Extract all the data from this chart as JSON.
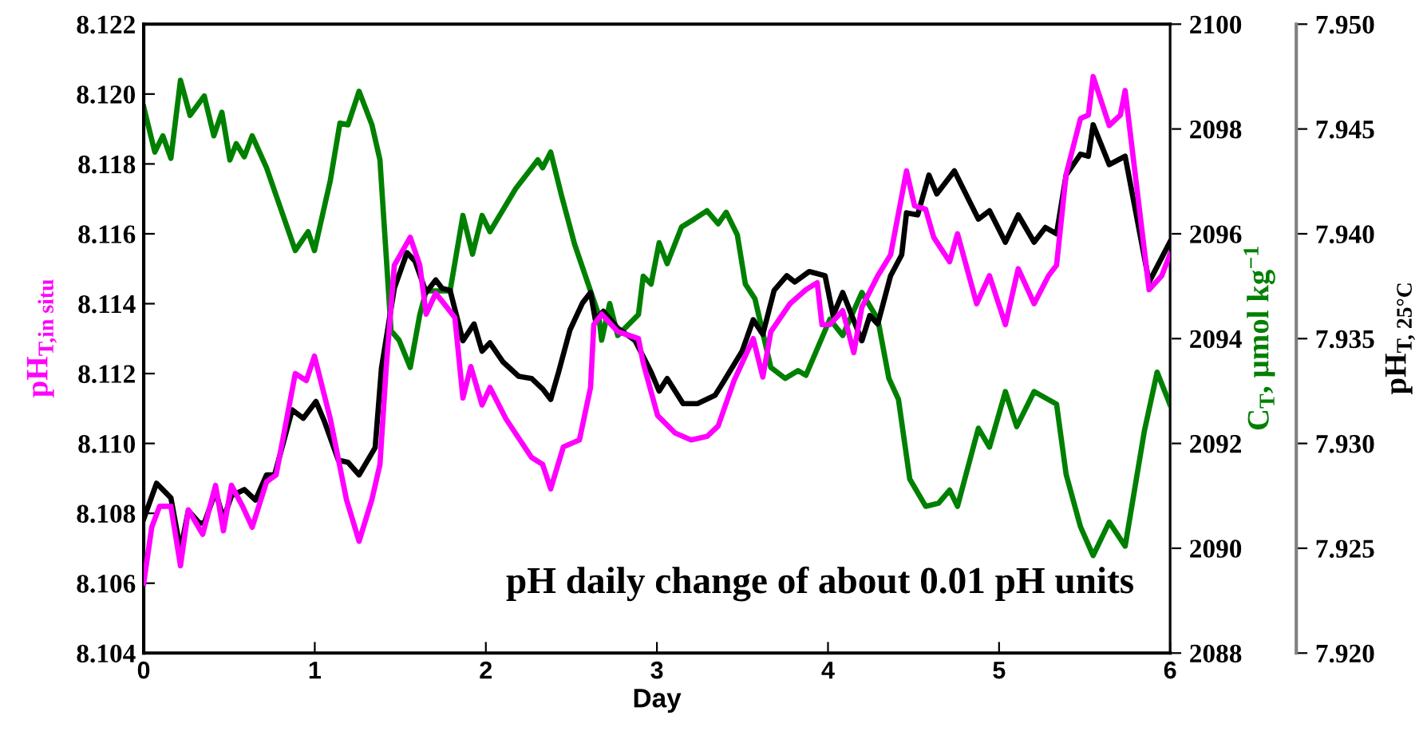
{
  "chart_data": {
    "type": "line",
    "xlabel": "Day",
    "ylabel": "pH$_{T,in situ}$",
    "y2label": "C$_{T}$, µmol kg$^{−1}$",
    "y3label": "pH$_{T, 25°C}$",
    "xlim": [
      0,
      6
    ],
    "xticks": [
      0,
      1,
      2,
      3,
      4,
      5,
      6
    ],
    "ylim": [
      8.104,
      8.122
    ],
    "yticks": [
      {
        "value": 8.104,
        "label": "8.104"
      },
      {
        "value": 8.106,
        "label": "8.106"
      },
      {
        "value": 8.108,
        "label": "8.108"
      },
      {
        "value": 8.11,
        "label": "8.110"
      },
      {
        "value": 8.112,
        "label": "8.112"
      },
      {
        "value": 8.114,
        "label": "8.114"
      },
      {
        "value": 8.116,
        "label": "8.116"
      },
      {
        "value": 8.118,
        "label": "8.118"
      },
      {
        "value": 8.12,
        "label": "8.120"
      },
      {
        "value": 8.122,
        "label": "8.122"
      }
    ],
    "y2lim": [
      2088,
      2100
    ],
    "y2ticks": [
      2088,
      2090,
      2092,
      2094,
      2096,
      2098,
      2100
    ],
    "y3lim": [
      7.92,
      7.95
    ],
    "y3ticks": [
      {
        "value": 7.92,
        "label": "7.920"
      },
      {
        "value": 7.925,
        "label": "7.925"
      },
      {
        "value": 7.93,
        "label": "7.930"
      },
      {
        "value": 7.935,
        "label": "7.935"
      },
      {
        "value": 7.94,
        "label": "7.940"
      },
      {
        "value": 7.945,
        "label": "7.945"
      },
      {
        "value": 7.95,
        "label": "7.950"
      }
    ],
    "grid": false,
    "legend": false,
    "marker": "none",
    "line_style": "solid",
    "annotations": [
      "pH daily change of about 0.01 pH units"
    ],
    "series": [
      {
        "color": "#ff00ff",
        "x": [
          0,
          0.047,
          0.093,
          0.159,
          0.215,
          0.261,
          0.345,
          0.42,
          0.466,
          0.513,
          0.578,
          0.634,
          0.718,
          0.774,
          0.886,
          0.951,
          0.998,
          1.091,
          1.185,
          1.259,
          1.334,
          1.381,
          1.418,
          1.465,
          1.558,
          1.614,
          1.651,
          1.707,
          1.772,
          1.819,
          1.866,
          1.912,
          1.978,
          2.024,
          2.118,
          2.267,
          2.332,
          2.379,
          2.453,
          2.547,
          2.612,
          2.631,
          2.677,
          2.771,
          2.892,
          2.92,
          3.004,
          3.106,
          3.2,
          3.293,
          3.358,
          3.451,
          3.563,
          3.619,
          3.666,
          3.778,
          3.871,
          3.937,
          3.965,
          4.011,
          4.086,
          4.151,
          4.198,
          4.291,
          4.366,
          4.459,
          4.506,
          4.571,
          4.618,
          4.711,
          4.757,
          4.869,
          4.944,
          5.037,
          5.112,
          5.205,
          5.289,
          5.336,
          5.392,
          5.476,
          5.522,
          5.55,
          5.644,
          5.709,
          5.737,
          5.877,
          5.951,
          5.998
        ],
        "values": [
          8.106,
          8.1076,
          8.1082,
          8.1082,
          8.1065,
          8.1081,
          8.1074,
          8.1088,
          8.1075,
          8.1088,
          8.1082,
          8.1076,
          8.1089,
          8.1091,
          8.112,
          8.1118,
          8.1125,
          8.1107,
          8.1084,
          8.1072,
          8.1084,
          8.1094,
          8.1122,
          8.1151,
          8.1159,
          8.1151,
          8.1137,
          8.1143,
          8.1139,
          8.1136,
          8.1113,
          8.1122,
          8.1111,
          8.1116,
          8.1107,
          8.1096,
          8.1094,
          8.1087,
          8.1099,
          8.1101,
          8.1116,
          8.1134,
          8.1137,
          8.1132,
          8.113,
          8.1123,
          8.1108,
          8.1103,
          8.1101,
          8.1102,
          8.1105,
          8.1118,
          8.113,
          8.1119,
          8.1132,
          8.114,
          8.1144,
          8.1146,
          8.1134,
          8.1134,
          8.1138,
          8.1126,
          8.1139,
          8.1148,
          8.1154,
          8.1178,
          8.1168,
          8.1167,
          8.1159,
          8.1152,
          8.116,
          8.114,
          8.1148,
          8.1134,
          8.115,
          8.114,
          8.1148,
          8.1151,
          8.1177,
          8.1193,
          8.1194,
          8.1205,
          8.1191,
          8.1194,
          8.1201,
          8.1144,
          8.1148,
          8.1154
        ]
      },
      {
        "color": "#008000",
        "axis": "y2",
        "x": [
          0,
          0.065,
          0.112,
          0.159,
          0.215,
          0.271,
          0.354,
          0.41,
          0.457,
          0.504,
          0.541,
          0.588,
          0.634,
          0.718,
          0.886,
          0.961,
          0.998,
          1.091,
          1.147,
          1.194,
          1.259,
          1.334,
          1.381,
          1.446,
          1.493,
          1.558,
          1.614,
          1.651,
          1.791,
          1.866,
          1.922,
          1.978,
          2.024,
          2.174,
          2.304,
          2.332,
          2.379,
          2.444,
          2.519,
          2.659,
          2.677,
          2.724,
          2.771,
          2.892,
          2.92,
          2.966,
          3.013,
          3.06,
          3.144,
          3.218,
          3.293,
          3.358,
          3.405,
          3.47,
          3.517,
          3.573,
          3.666,
          3.75,
          3.825,
          3.871,
          4.011,
          4.086,
          4.198,
          4.291,
          4.356,
          4.412,
          4.478,
          4.571,
          4.646,
          4.711,
          4.757,
          4.879,
          4.944,
          5.037,
          5.103,
          5.205,
          5.336,
          5.392,
          5.476,
          5.55,
          5.644,
          5.737,
          5.849,
          5.924,
          5.998
        ],
        "values": [
          2098.42,
          2097.56,
          2097.87,
          2097.44,
          2098.93,
          2098.26,
          2098.63,
          2097.87,
          2098.32,
          2097.41,
          2097.72,
          2097.47,
          2097.87,
          2097.26,
          2095.68,
          2096.04,
          2095.68,
          2097.02,
          2098.11,
          2098.08,
          2098.72,
          2098.08,
          2097.41,
          2094.15,
          2093.97,
          2093.45,
          2094.46,
          2094.91,
          2094.91,
          2096.35,
          2095.61,
          2096.35,
          2096.04,
          2096.86,
          2097.41,
          2097.26,
          2097.56,
          2096.71,
          2095.8,
          2094.46,
          2093.97,
          2094.67,
          2094.06,
          2094.46,
          2095.19,
          2095.04,
          2095.83,
          2095.43,
          2096.13,
          2096.28,
          2096.44,
          2096.19,
          2096.41,
          2095.98,
          2095.04,
          2094.76,
          2093.45,
          2093.24,
          2093.39,
          2093.3,
          2094.37,
          2094.06,
          2094.88,
          2094.37,
          2093.24,
          2092.84,
          2091.32,
          2090.8,
          2090.86,
          2091.11,
          2090.8,
          2092.29,
          2091.93,
          2092.99,
          2092.32,
          2092.99,
          2092.75,
          2091.41,
          2090.41,
          2089.86,
          2090.5,
          2090.04,
          2092.23,
          2093.36,
          2092.75
        ]
      },
      {
        "color": "#000000",
        "axis": "y3",
        "x": [
          0,
          0.075,
          0.159,
          0.215,
          0.261,
          0.326,
          0.354,
          0.42,
          0.466,
          0.513,
          0.588,
          0.653,
          0.718,
          0.765,
          0.868,
          0.933,
          1.007,
          1.054,
          1.138,
          1.194,
          1.259,
          1.353,
          1.39,
          1.465,
          1.539,
          1.586,
          1.651,
          1.707,
          1.744,
          1.791,
          1.866,
          1.931,
          1.978,
          2.024,
          2.099,
          2.192,
          2.267,
          2.332,
          2.379,
          2.425,
          2.491,
          2.565,
          2.612,
          2.64,
          2.687,
          2.771,
          2.873,
          2.966,
          3.013,
          3.06,
          3.153,
          3.237,
          3.34,
          3.386,
          3.498,
          3.563,
          3.619,
          3.685,
          3.759,
          3.806,
          3.89,
          3.983,
          4.03,
          4.086,
          4.198,
          4.244,
          4.291,
          4.366,
          4.431,
          4.459,
          4.524,
          4.59,
          4.636,
          4.739,
          4.879,
          4.944,
          5.037,
          5.112,
          5.205,
          5.271,
          5.336,
          5.392,
          5.476,
          5.522,
          5.55,
          5.644,
          5.737,
          5.877,
          5.998
        ],
        "values": [
          7.9264,
          7.9281,
          7.9274,
          7.9249,
          7.9268,
          7.9262,
          7.9262,
          7.9277,
          7.9264,
          7.9275,
          7.9278,
          7.9273,
          7.9285,
          7.9285,
          7.9316,
          7.9312,
          7.932,
          7.9311,
          7.9292,
          7.9291,
          7.9285,
          7.9298,
          7.9336,
          7.9374,
          7.9391,
          7.9387,
          7.9372,
          7.9378,
          7.9374,
          7.9373,
          7.9349,
          7.9357,
          7.9344,
          7.9348,
          7.9339,
          7.9332,
          7.9331,
          7.9326,
          7.9321,
          7.9334,
          7.9354,
          7.9367,
          7.9372,
          7.9359,
          7.9363,
          7.9355,
          7.9349,
          7.9334,
          7.9325,
          7.9331,
          7.9319,
          7.9319,
          7.9323,
          7.9329,
          7.9344,
          7.9359,
          7.9352,
          7.9373,
          7.938,
          7.9377,
          7.9382,
          7.938,
          7.9361,
          7.9372,
          7.9349,
          7.9361,
          7.9357,
          7.938,
          7.939,
          7.941,
          7.9409,
          7.9428,
          7.9419,
          7.943,
          7.9407,
          7.9411,
          7.9396,
          7.9409,
          7.9396,
          7.9403,
          7.94,
          7.9428,
          7.9438,
          7.9437,
          7.9452,
          7.9433,
          7.9437,
          7.9377,
          7.9396
        ]
      }
    ]
  }
}
